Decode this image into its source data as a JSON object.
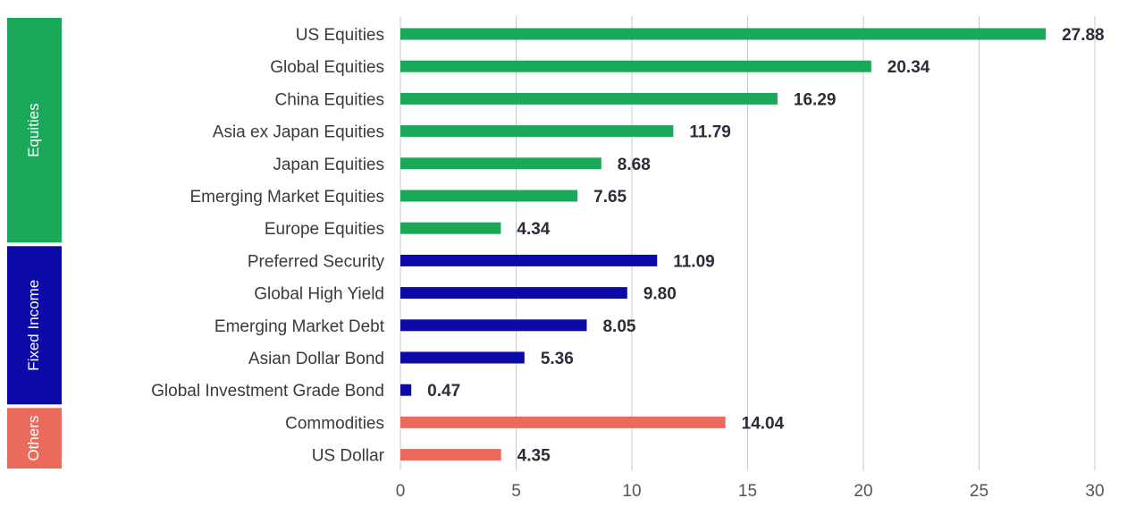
{
  "chart_data": {
    "type": "bar",
    "orientation": "horizontal",
    "title": "",
    "xlabel": "",
    "ylabel": "",
    "xlim": [
      0,
      30
    ],
    "xticks": [
      0,
      5,
      10,
      15,
      20,
      25,
      30
    ],
    "grid": "vertical",
    "legend": "none",
    "groups": [
      {
        "name": "Equities",
        "color": "#1aa85a",
        "start": 0,
        "count": 7
      },
      {
        "name": "Fixed Income",
        "color": "#0b0aa8",
        "start": 7,
        "count": 5
      },
      {
        "name": "Others",
        "color": "#ea6a5c",
        "start": 12,
        "count": 2
      }
    ],
    "categories": [
      "US Equities",
      "Global Equities",
      "China Equities",
      "Asia ex Japan Equities",
      "Japan Equities",
      "Emerging Market Equities",
      "Europe Equities",
      "Preferred Security",
      "Global High Yield",
      "Emerging Market Debt",
      "Asian Dollar Bond",
      "Global Investment Grade Bond",
      "Commodities",
      "US Dollar"
    ],
    "values": [
      27.88,
      20.34,
      16.29,
      11.79,
      8.68,
      7.65,
      4.34,
      11.09,
      9.8,
      8.05,
      5.36,
      0.47,
      14.04,
      4.35
    ],
    "value_labels": [
      "27.88",
      "20.34",
      "16.29",
      "11.79",
      "8.68",
      "7.65",
      "4.34",
      "11.09",
      "9.80",
      "8.05",
      "5.36",
      "0.47",
      "14.04",
      "4.35"
    ]
  }
}
